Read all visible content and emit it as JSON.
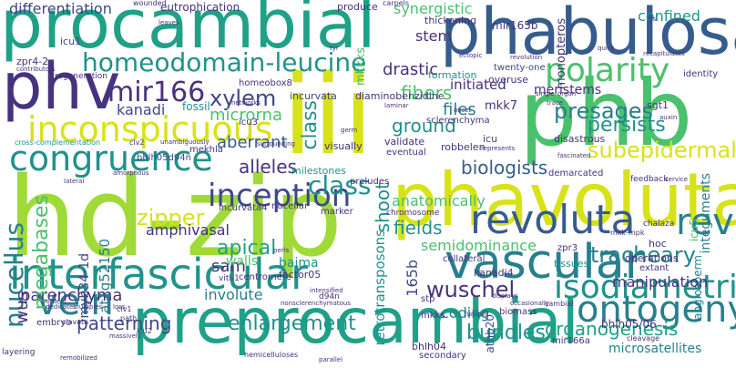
{
  "palette": {
    "yellow": "#d8e219",
    "lime": "#a0da39",
    "green": "#4ac16d",
    "teal": "#1fa187",
    "cyan": "#21918c",
    "blue": "#277f8e",
    "steel": "#365c8d",
    "indigo": "#3f4788",
    "purple": "#46327e",
    "dark": "#440154"
  },
  "words": {
    "procambial": "procambial",
    "phabulosa": "phabulosa",
    "iii": "iii",
    "hdzip": "hd-zip",
    "phb": "phb",
    "phv": "phv",
    "phavoluta": "phavoluta",
    "preprocambial": "preprocambial",
    "interfascicular": "interfascicular",
    "vascular": "vascular",
    "inconspicuous": "inconspicuous",
    "congruence": "congruence",
    "inception": "inception",
    "revoluta": "revoluta",
    "rev": "rev",
    "ontogeny": "ontogeny",
    "isodiametric": "isodiametric",
    "vein": "vein",
    "polarity": "polarity",
    "homeodomain": "homeodomain-leucine",
    "mir166": "mir166",
    "xylem": "xylem",
    "zipper": "zipper",
    "nucellus": "nucellus",
    "megabases": "megabases",
    "class": "class",
    "wuschel": "wuschel",
    "tracheary": "tracheary",
    "fibers": "fibers",
    "presages": "presages",
    "persists": "persists",
    "subepidermal": "subepidermal",
    "biologists": "biologists",
    "ground": "ground",
    "apical": "apical",
    "alleles": "alleles",
    "patterning": "patterning",
    "enlargement": "enlargement",
    "bundles": "bundles",
    "organogenesis": "organogenesis",
    "parenchyma": "parenchyma",
    "differentiation": "differentiation",
    "drastic": "drastic",
    "stem": "stem",
    "synergistic": "synergistic",
    "confined": "confined",
    "shoot": "shoot",
    "fields": "fields",
    "sam": "sam",
    "files": "files",
    "amphivasal": "amphivasal",
    "semidominance": "semidominance",
    "microrna": "microrna",
    "kanadi": "kanadi",
    "aberrant": "aberrant",
    "meristems": "meristems",
    "initiated": "initiated",
    "anatomically": "anatomically",
    "manipulation": "manipulation",
    "coding": "coding",
    "involute": "involute",
    "walls": "walls",
    "baima": "baima",
    "microsatellites": "microsatellites",
    "mir165b": "mir165b",
    "mkk7": "mkk7",
    "icu1": "icu1",
    "zpr4_2": "zpr4-2",
    "fossil": "fossil",
    "homeobox8": "homeobox8",
    "incurvata": "incurvata",
    "diaminobenzidine": "diaminobenzidine",
    "overuse": "overuse",
    "twentyone": "twenty-one",
    "formation": "formation",
    "thickening": "thickening",
    "monopteros": "monopteros",
    "sclerenchyma": "sclerenchyma",
    "icu": "icu",
    "robbelen": "robbelen",
    "validate": "validate",
    "eventual": "eventual",
    "disastrous": "disastrous",
    "sgt1": "sgt1",
    "demarcated": "demarcated",
    "identity": "identity",
    "integuments": "integuments",
    "mekhla": "mekhla",
    "bhlh05d94n": "bhlh05d94n",
    "milestones": "milestones",
    "preludes": "preludes",
    "nucellar": "nucellar",
    "incurvata4": "incurvata4",
    "chromosome": "chromosome",
    "marker": "marker",
    "centromere": "centromere",
    "factor05": "factor05",
    "at1g52150": "at1g52150",
    "myb34_1d": "myb34-1d",
    "retrotransposons": "retrotransposons",
    "b165": "165b",
    "collateral": "collateral",
    "zpr3": "zpr3",
    "hoc": "hoc",
    "kanadi4": "kanadi4",
    "tissues": "tissues",
    "icu5": "icu5",
    "extant": "extant",
    "angiosperm": "angiosperm",
    "operations": "operations",
    "mkks": "mkks",
    "stp": "stp",
    "biomass": "biomass",
    "embryo": "embryo",
    "wus": "wus",
    "bhlh04": "bhlh04",
    "secondary": "secondary",
    "mir166a": "mir166a",
    "bhlh0506": "bhlh05/06",
    "athb20": "athb20",
    "eutrophication": "eutrophication",
    "produce": "produce",
    "wounded": "wounded",
    "carpels": "carpels",
    "mkkks": "mkkks",
    "regeneration": "regeneration",
    "icu3": "icu3",
    "visually": "visually",
    "d94n": "d94n",
    "chalaza": "chalaza",
    "feedback": "feedback",
    "crosscomp": "cross-complementation",
    "constellation": "constellation",
    "contributors": "contributors",
    "unbranched": "unbranched",
    "leaves": "leaves",
    "tyr": "tyr",
    "ectopic": "ectopic",
    "networks": "networks",
    "laminar": "laminar",
    "onset": "onset",
    "single": "single",
    "organ": "organ",
    "trace": "trace",
    "auxin": "auxin",
    "gsl": "gsl",
    "quick": "quick",
    "recapitulates": "recapitulates",
    "permanence": "permanence",
    "revolution": "revolution",
    "clv2": "clv2",
    "unambiguously": "unambiguously",
    "surrounding": "surrounding",
    "amorphous": "amorphous",
    "lateral": "lateral",
    "image": "image",
    "germ": "germ",
    "represents": "represents",
    "fascinated": "fascinated",
    "service": "service",
    "perls": "perls",
    "intensified": "intensified",
    "nonsclerenchymatous": "nonsclerenchymatous",
    "displays": "displays",
    "funiculi": "funiculi",
    "combinations": "combinations",
    "cambial": "cambial",
    "mkkmpk": "mkk-mpk",
    "occasionally": "occasionally",
    "cleavage": "cleavage",
    "hemicelluloses": "hemicelluloses",
    "parallel": "parallel",
    "remobilized": "remobilized",
    "layering": "layering",
    "clavata": "clavata",
    "clv1": "clv1",
    "path": "path",
    "massively": "massively",
    "icu2": "icu2",
    "loss": "loss",
    "yabby": "yabby",
    "borders": "borders",
    "dedicates": "dedicates",
    "multiples": "multiples",
    "clv": "clv",
    "vitl": "vitl-1",
    "ssrs": "ssrs",
    "occurring": "occurring",
    "maintenance": "maintenance",
    "reconstructing": "reconstructing",
    "xyl": "xyl",
    "cabled": "cabled",
    "rlusa": "rlusa",
    "funiculus": "funiculus",
    "survival": "survival",
    "organogenesis2": "organogenesis",
    "cabbage": "cabbage",
    "ancestry": "ancestry"
  }
}
